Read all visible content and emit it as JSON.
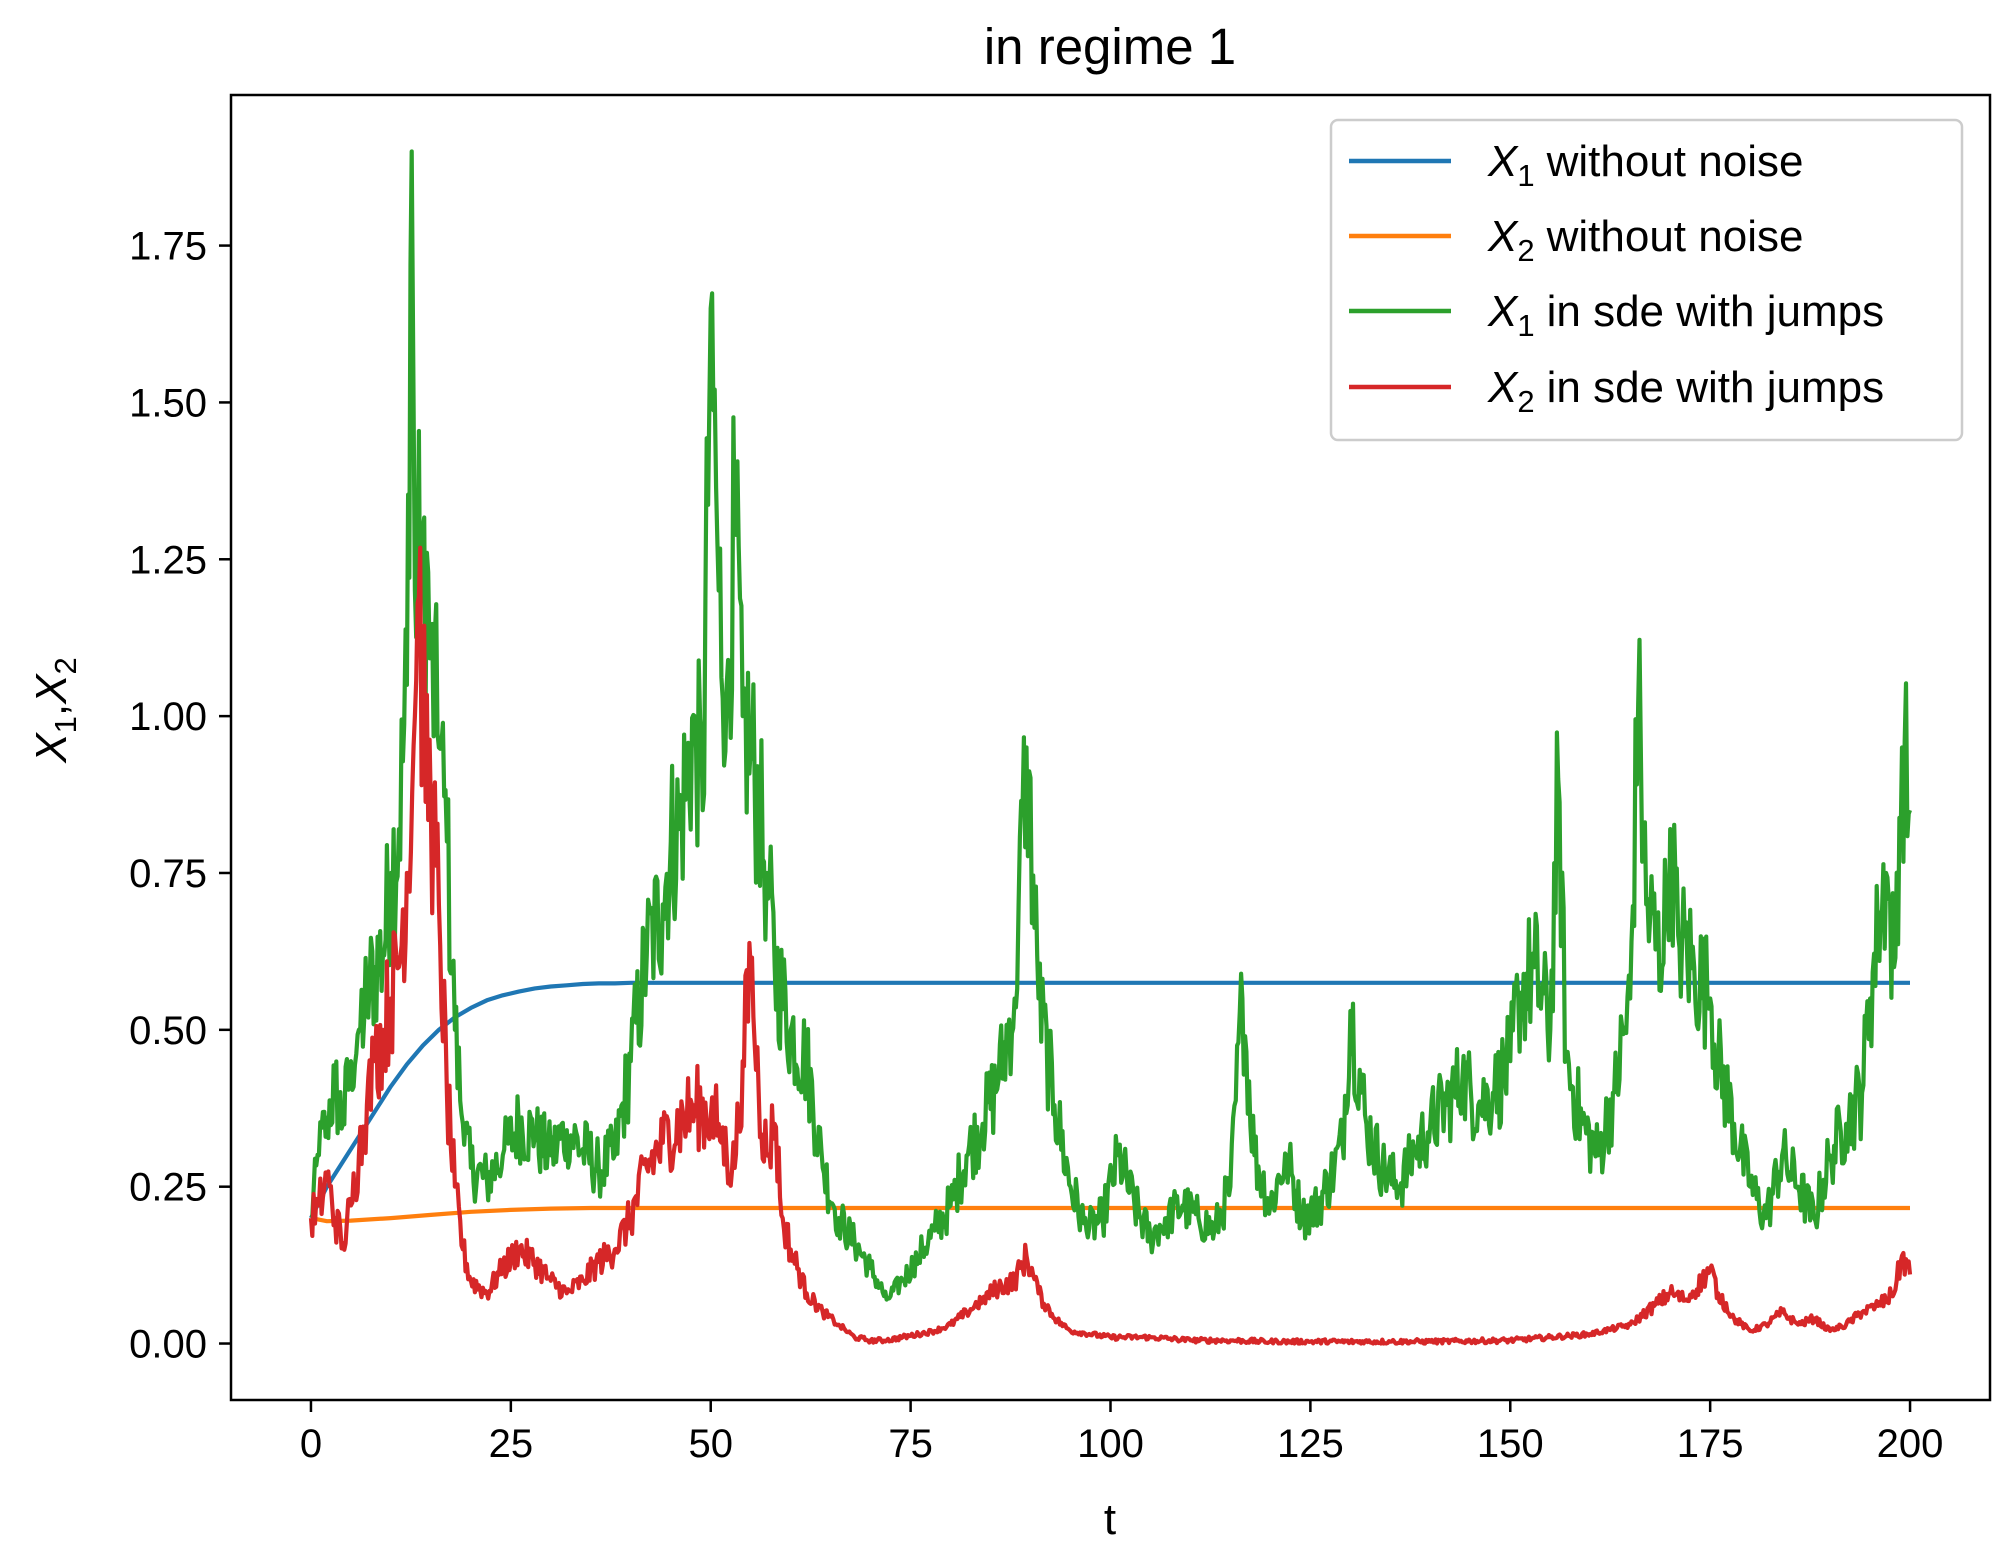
{
  "chart_data": {
    "type": "line",
    "title": "in regime 1",
    "xlabel": "t",
    "ylabel": {
      "parts": [
        "X",
        "1",
        ",",
        "X",
        "2"
      ]
    },
    "xlim": [
      -10,
      210
    ],
    "ylim": [
      -0.09,
      1.99
    ],
    "xticks": [
      0,
      25,
      50,
      75,
      100,
      125,
      150,
      175,
      200
    ],
    "xtick_labels": [
      "0",
      "25",
      "50",
      "75",
      "100",
      "125",
      "150",
      "175",
      "200"
    ],
    "yticks": [
      0.0,
      0.25,
      0.5,
      0.75,
      1.0,
      1.25,
      1.5,
      1.75
    ],
    "ytick_labels": [
      "0.00",
      "0.25",
      "0.50",
      "0.75",
      "1.00",
      "1.25",
      "1.50",
      "1.75"
    ],
    "grid": false,
    "legend_position": "top-right",
    "series": [
      {
        "name": "X1 without noise",
        "legend": {
          "var": "X",
          "sub": "1",
          "text": "without noise"
        },
        "color": "#1f77b4",
        "style": "smooth",
        "x": [
          0,
          2,
          4,
          6,
          8,
          10,
          12,
          14,
          16,
          18,
          20,
          22,
          24,
          26,
          28,
          30,
          32,
          34,
          36,
          38,
          40,
          45,
          50,
          60,
          80,
          100,
          150,
          200
        ],
        "y": [
          0.2,
          0.25,
          0.29,
          0.33,
          0.37,
          0.41,
          0.445,
          0.475,
          0.5,
          0.52,
          0.535,
          0.547,
          0.555,
          0.561,
          0.566,
          0.569,
          0.571,
          0.573,
          0.574,
          0.574,
          0.575,
          0.575,
          0.575,
          0.575,
          0.575,
          0.575,
          0.575,
          0.575
        ]
      },
      {
        "name": "X2 without noise",
        "legend": {
          "var": "X",
          "sub": "2",
          "text": "without noise"
        },
        "color": "#ff7f0e",
        "style": "smooth",
        "x": [
          0,
          2,
          5,
          10,
          15,
          20,
          25,
          30,
          35,
          40,
          60,
          100,
          150,
          200
        ],
        "y": [
          0.2,
          0.195,
          0.196,
          0.2,
          0.205,
          0.21,
          0.213,
          0.215,
          0.216,
          0.216,
          0.216,
          0.216,
          0.216,
          0.216
        ]
      },
      {
        "name": "X1 in sde with jumps",
        "legend": {
          "var": "X",
          "sub": "1",
          "text": "in sde with jumps"
        },
        "color": "#2ca02c",
        "style": "noisy",
        "x": [
          0,
          1,
          2,
          3,
          4,
          5,
          6,
          7,
          8,
          9,
          10,
          11,
          12,
          12.6,
          13,
          14,
          15,
          16,
          17,
          18,
          19,
          20,
          22,
          24,
          26,
          28,
          30,
          32,
          34,
          36,
          38,
          40,
          42,
          44,
          45,
          46,
          47,
          48,
          49,
          50,
          51,
          52,
          53,
          54,
          55,
          56,
          57,
          58,
          60,
          62,
          64,
          66,
          68,
          70,
          72,
          74,
          76,
          78,
          80,
          82,
          84,
          86,
          88,
          89.5,
          91,
          93,
          95,
          97,
          99,
          101,
          103,
          105,
          107,
          109,
          111,
          113,
          115,
          116.5,
          118,
          120,
          122,
          124,
          126,
          128,
          129,
          130,
          132,
          134,
          136,
          138,
          140,
          142,
          144,
          146,
          148,
          150,
          151,
          153,
          155,
          156,
          157,
          159,
          161,
          163,
          165,
          166,
          167,
          169,
          170,
          171,
          173,
          175,
          176,
          178,
          180,
          182,
          184,
          186,
          188,
          190,
          192,
          194,
          195,
          196,
          197,
          198,
          199,
          200
        ],
        "y": [
          0.2,
          0.3,
          0.36,
          0.41,
          0.35,
          0.45,
          0.5,
          0.55,
          0.6,
          0.62,
          0.75,
          0.82,
          1.05,
          1.9,
          1.2,
          1.3,
          1.1,
          0.95,
          0.8,
          0.5,
          0.35,
          0.28,
          0.26,
          0.3,
          0.35,
          0.33,
          0.3,
          0.34,
          0.31,
          0.28,
          0.3,
          0.45,
          0.62,
          0.7,
          0.8,
          0.82,
          0.9,
          1.0,
          0.85,
          1.65,
          1.2,
          1.05,
          1.3,
          1.0,
          0.95,
          0.85,
          0.75,
          0.6,
          0.5,
          0.45,
          0.28,
          0.2,
          0.16,
          0.12,
          0.07,
          0.1,
          0.14,
          0.18,
          0.22,
          0.3,
          0.35,
          0.42,
          0.55,
          0.95,
          0.55,
          0.38,
          0.25,
          0.18,
          0.2,
          0.3,
          0.22,
          0.17,
          0.2,
          0.22,
          0.2,
          0.18,
          0.25,
          0.55,
          0.3,
          0.22,
          0.3,
          0.2,
          0.22,
          0.28,
          0.32,
          0.53,
          0.35,
          0.28,
          0.25,
          0.3,
          0.35,
          0.38,
          0.42,
          0.38,
          0.4,
          0.45,
          0.55,
          0.6,
          0.5,
          0.9,
          0.45,
          0.35,
          0.3,
          0.4,
          0.55,
          1.02,
          0.7,
          0.6,
          0.82,
          0.65,
          0.6,
          0.55,
          0.45,
          0.35,
          0.25,
          0.2,
          0.3,
          0.25,
          0.2,
          0.3,
          0.35,
          0.4,
          0.55,
          0.65,
          0.75,
          0.6,
          0.95,
          0.85
        ]
      },
      {
        "name": "X2 in sde with jumps",
        "legend": {
          "var": "X",
          "sub": "2",
          "text": "in sde with jumps"
        },
        "color": "#d62728",
        "style": "noisy",
        "x": [
          0,
          1,
          2,
          3,
          4,
          5,
          6,
          7,
          8,
          9,
          10,
          11,
          12,
          13,
          13.5,
          14,
          15,
          16,
          17,
          18,
          19,
          20,
          22,
          24,
          26,
          28,
          30,
          32,
          34,
          36,
          38,
          40,
          42,
          44,
          46,
          48,
          50,
          51,
          52,
          53,
          54,
          55,
          56,
          57,
          58,
          59,
          60,
          62,
          64,
          66,
          68,
          70,
          72,
          74,
          76,
          78,
          80,
          82,
          84,
          86,
          88,
          89.5,
          91,
          93,
          95,
          100,
          105,
          110,
          115,
          120,
          125,
          130,
          135,
          140,
          145,
          150,
          155,
          160,
          165,
          168,
          170,
          172,
          174,
          175,
          176,
          178,
          180,
          182,
          184,
          186,
          188,
          190,
          192,
          194,
          196,
          198,
          199,
          200
        ],
        "y": [
          0.2,
          0.22,
          0.26,
          0.2,
          0.16,
          0.22,
          0.3,
          0.38,
          0.45,
          0.5,
          0.55,
          0.6,
          0.75,
          1.0,
          1.19,
          1.0,
          0.85,
          0.7,
          0.4,
          0.25,
          0.15,
          0.1,
          0.08,
          0.12,
          0.15,
          0.13,
          0.1,
          0.08,
          0.1,
          0.13,
          0.15,
          0.2,
          0.28,
          0.32,
          0.35,
          0.38,
          0.36,
          0.35,
          0.3,
          0.28,
          0.45,
          0.6,
          0.4,
          0.3,
          0.35,
          0.2,
          0.15,
          0.08,
          0.05,
          0.03,
          0.01,
          0.005,
          0.005,
          0.01,
          0.015,
          0.02,
          0.03,
          0.05,
          0.07,
          0.09,
          0.1,
          0.14,
          0.08,
          0.04,
          0.02,
          0.01,
          0.01,
          0.005,
          0.005,
          0.003,
          0.003,
          0.003,
          0.003,
          0.003,
          0.004,
          0.005,
          0.01,
          0.015,
          0.03,
          0.06,
          0.08,
          0.07,
          0.1,
          0.12,
          0.08,
          0.04,
          0.02,
          0.03,
          0.05,
          0.03,
          0.04,
          0.02,
          0.03,
          0.05,
          0.06,
          0.08,
          0.14,
          0.11
        ]
      }
    ]
  }
}
